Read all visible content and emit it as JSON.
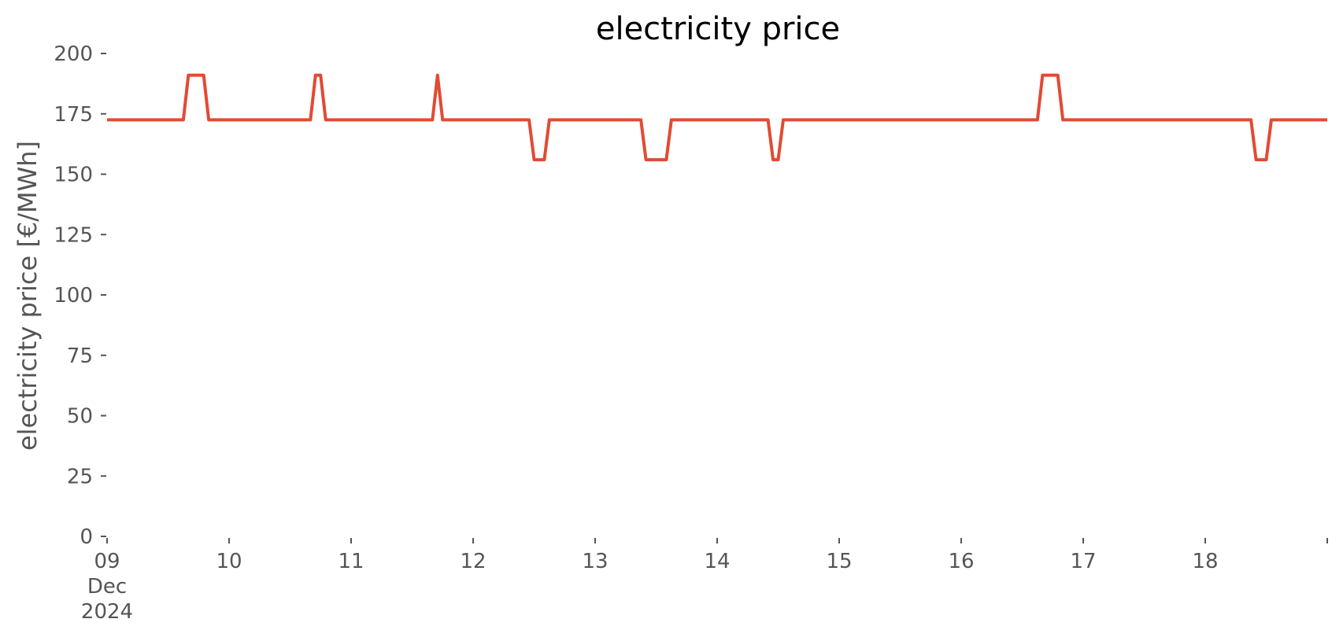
{
  "chart_data": {
    "type": "line",
    "title": "electricity price",
    "xlabel": "",
    "ylabel": "electricity price [€/MWh]",
    "ylim": [
      0,
      200
    ],
    "xlim": [
      "2024-12-09 00:00",
      "2024-12-19 00:00"
    ],
    "grid": false,
    "legend": "none",
    "colors": {
      "line": "#E24A33",
      "text": "#555555",
      "title": "#000000"
    },
    "yticks": [
      {
        "value": 0,
        "label": "0"
      },
      {
        "value": 25,
        "label": "25"
      },
      {
        "value": 50,
        "label": "50"
      },
      {
        "value": 75,
        "label": "75"
      },
      {
        "value": 100,
        "label": "100"
      },
      {
        "value": 125,
        "label": "125"
      },
      {
        "value": 150,
        "label": "150"
      },
      {
        "value": 175,
        "label": "175"
      },
      {
        "value": 200,
        "label": "200"
      }
    ],
    "xticks": [
      {
        "value": "2024-12-09",
        "lines": [
          "09",
          "Dec",
          "2024"
        ]
      },
      {
        "value": "2024-12-10",
        "lines": [
          "10"
        ]
      },
      {
        "value": "2024-12-11",
        "lines": [
          "11"
        ]
      },
      {
        "value": "2024-12-12",
        "lines": [
          "12"
        ]
      },
      {
        "value": "2024-12-13",
        "lines": [
          "13"
        ]
      },
      {
        "value": "2024-12-14",
        "lines": [
          "14"
        ]
      },
      {
        "value": "2024-12-15",
        "lines": [
          "15"
        ]
      },
      {
        "value": "2024-12-16",
        "lines": [
          "16"
        ]
      },
      {
        "value": "2024-12-17",
        "lines": [
          "17"
        ]
      },
      {
        "value": "2024-12-18",
        "lines": [
          "18"
        ]
      },
      {
        "value": "2024-12-19",
        "lines": [
          ""
        ]
      }
    ],
    "series": [
      {
        "points": [
          {
            "x": "2024-12-09 00:00",
            "y": 172.5
          },
          {
            "x": "2024-12-09 15:00",
            "y": 172.5
          },
          {
            "x": "2024-12-09 16:00",
            "y": 191
          },
          {
            "x": "2024-12-09 19:00",
            "y": 191
          },
          {
            "x": "2024-12-09 20:00",
            "y": 172.5
          },
          {
            "x": "2024-12-10 16:00",
            "y": 172.5
          },
          {
            "x": "2024-12-10 17:00",
            "y": 191
          },
          {
            "x": "2024-12-10 18:00",
            "y": 191
          },
          {
            "x": "2024-12-10 19:00",
            "y": 172.5
          },
          {
            "x": "2024-12-11 16:00",
            "y": 172.5
          },
          {
            "x": "2024-12-11 17:00",
            "y": 191
          },
          {
            "x": "2024-12-11 18:00",
            "y": 172.5
          },
          {
            "x": "2024-12-12 11:00",
            "y": 172.5
          },
          {
            "x": "2024-12-12 12:00",
            "y": 156
          },
          {
            "x": "2024-12-12 14:00",
            "y": 156
          },
          {
            "x": "2024-12-12 15:00",
            "y": 172.5
          },
          {
            "x": "2024-12-13 09:00",
            "y": 172.5
          },
          {
            "x": "2024-12-13 10:00",
            "y": 156
          },
          {
            "x": "2024-12-13 14:00",
            "y": 156
          },
          {
            "x": "2024-12-13 15:00",
            "y": 172.5
          },
          {
            "x": "2024-12-14 10:00",
            "y": 172.5
          },
          {
            "x": "2024-12-14 11:00",
            "y": 156
          },
          {
            "x": "2024-12-14 12:00",
            "y": 156
          },
          {
            "x": "2024-12-14 13:00",
            "y": 172.5
          },
          {
            "x": "2024-12-16 15:00",
            "y": 172.5
          },
          {
            "x": "2024-12-16 16:00",
            "y": 191
          },
          {
            "x": "2024-12-16 19:00",
            "y": 191
          },
          {
            "x": "2024-12-16 20:00",
            "y": 172.5
          },
          {
            "x": "2024-12-18 09:00",
            "y": 172.5
          },
          {
            "x": "2024-12-18 10:00",
            "y": 156
          },
          {
            "x": "2024-12-18 12:00",
            "y": 156
          },
          {
            "x": "2024-12-18 13:00",
            "y": 172.5
          },
          {
            "x": "2024-12-19 00:00",
            "y": 172.5
          }
        ]
      }
    ]
  }
}
